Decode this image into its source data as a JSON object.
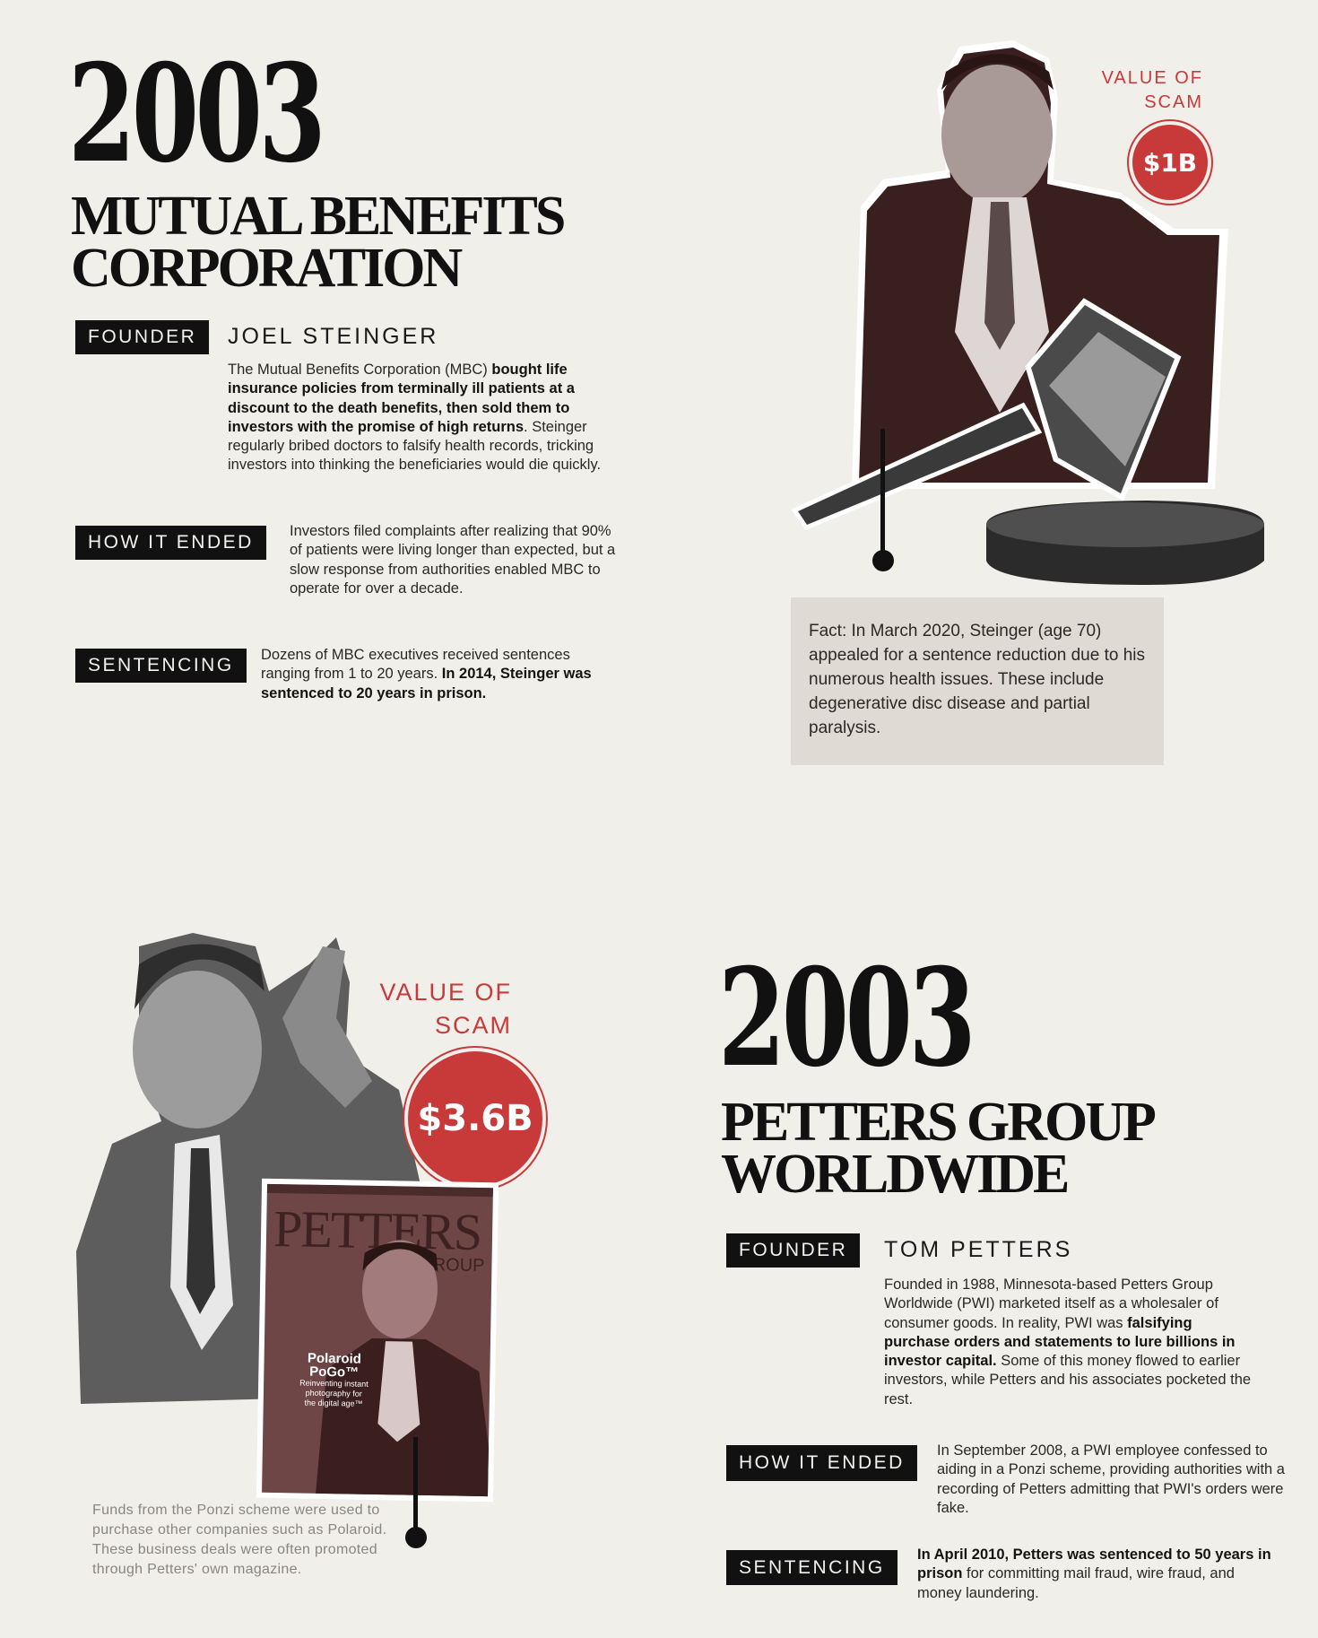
{
  "mbc": {
    "year": "2003",
    "title_lines": [
      "MUTUAL BENEFITS",
      "CORPORATION"
    ],
    "founder_label": "FOUNDER",
    "founder_name": "JOEL STEINGER",
    "founder_desc": [
      {
        "text": "The Mutual Benefits Corporation (MBC) ",
        "bold": false
      },
      {
        "text": "bought life insurance policies from terminally ill patients at a discount to the death benefits, then sold them to investors with the promise of high returns",
        "bold": true
      },
      {
        "text": ". Steinger regularly bribed doctors to falsify health records, tricking investors into thinking the beneficiaries would die quickly.",
        "bold": false
      }
    ],
    "ended_label": "HOW IT ENDED",
    "ended_desc": "Investors filed complaints after realizing that 90% of patients were living longer than expected, but a slow response from authorities enabled MBC to operate for over a decade.",
    "sentencing_label": "SENTENCING",
    "sentencing_desc": [
      {
        "text": "Dozens of MBC executives received sentences ranging from 1 to 20 years. ",
        "bold": false
      },
      {
        "text": "In 2014, Steinger was sentenced to 20 years in prison.",
        "bold": true
      }
    ],
    "value_label_lines": [
      "VALUE OF",
      "SCAM"
    ],
    "value": "$1B",
    "fact": "Fact: In March 2020, Steinger (age 70) appealed for a sentence reduction due to his numerous health issues. These include degenerative disc disease and partial paralysis."
  },
  "petters": {
    "year": "2003",
    "title_lines": [
      "PETTERS GROUP",
      "WORLDWIDE"
    ],
    "founder_label": "FOUNDER",
    "founder_name": "TOM PETTERS",
    "founder_desc": [
      {
        "text": "Founded in 1988, Minnesota-based Petters Group Worldwide (PWI) marketed itself as a wholesaler of consumer goods. In reality, PWI was ",
        "bold": false
      },
      {
        "text": "falsifying purchase orders and statements to lure billions in investor capital.",
        "bold": true
      },
      {
        "text": " Some of this money flowed to earlier investors, while Petters and his associates pocketed the rest.",
        "bold": false
      }
    ],
    "ended_label": "HOW IT ENDED",
    "ended_desc": "In September 2008, a PWI employee confessed to aiding in a Ponzi scheme, providing authorities with a recording of Petters admitting that PWI's orders were fake.",
    "sentencing_label": "SENTENCING",
    "sentencing_desc": [
      {
        "text": "In April 2010, Petters was sentenced to 50 years in prison",
        "bold": true
      },
      {
        "text": " for committing mail fraud, wire fraud, and money laundering.",
        "bold": false
      }
    ],
    "value_label_lines": [
      "VALUE OF",
      "SCAM"
    ],
    "value": "$3.6B",
    "caption": "Funds from the Ponzi scheme were used to purchase other companies such as Polaroid. These business deals were often promoted through Petters' own magazine.",
    "magazine": {
      "masthead": "PETTERS",
      "subhead": "GROUP",
      "cover_lines": [
        "Polaroid",
        "PoGo™",
        "Reinventing instant",
        "photography for",
        "the digital age™"
      ]
    }
  },
  "colors": {
    "accent_red": "#c8393a",
    "paper": "#f1efea",
    "label_black": "#111111",
    "fact_box": "#dfdbd4"
  }
}
